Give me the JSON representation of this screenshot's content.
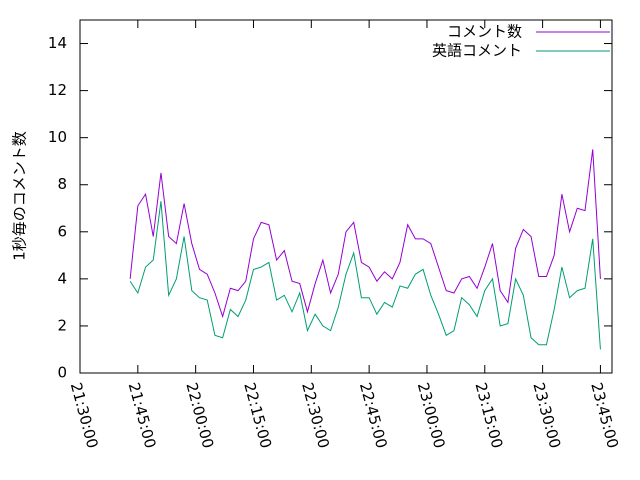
{
  "chart_data": {
    "type": "line",
    "y_label": "1秒毎のコメント数",
    "x": [
      "21:43:00",
      "21:45:00",
      "21:47:00",
      "21:49:00",
      "21:51:00",
      "21:53:00",
      "21:55:00",
      "21:57:00",
      "21:59:00",
      "22:01:00",
      "22:03:00",
      "22:05:00",
      "22:07:00",
      "22:09:00",
      "22:11:00",
      "22:13:00",
      "22:15:00",
      "22:17:00",
      "22:19:00",
      "22:21:00",
      "22:23:00",
      "22:25:00",
      "22:27:00",
      "22:29:00",
      "22:31:00",
      "22:33:00",
      "22:35:00",
      "22:37:00",
      "22:39:00",
      "22:41:00",
      "22:43:00",
      "22:45:00",
      "22:47:00",
      "22:49:00",
      "22:51:00",
      "22:53:00",
      "22:55:00",
      "22:57:00",
      "22:59:00",
      "23:01:00",
      "23:03:00",
      "23:05:00",
      "23:07:00",
      "23:09:00",
      "23:11:00",
      "23:13:00",
      "23:15:00",
      "23:17:00",
      "23:19:00",
      "23:21:00",
      "23:23:00",
      "23:25:00",
      "23:27:00",
      "23:29:00",
      "23:31:00",
      "23:33:00",
      "23:35:00",
      "23:37:00",
      "23:39:00",
      "23:41:00",
      "23:43:00",
      "23:45:00"
    ],
    "series": [
      {
        "name": "コメント数",
        "color": "#9400d3",
        "values": [
          4.0,
          7.1,
          7.6,
          5.8,
          8.5,
          5.8,
          5.5,
          7.2,
          5.5,
          4.4,
          4.2,
          3.4,
          2.4,
          3.6,
          3.5,
          3.9,
          5.7,
          6.4,
          6.3,
          4.8,
          5.2,
          3.9,
          3.8,
          2.6,
          3.8,
          4.8,
          3.4,
          4.2,
          6.0,
          6.4,
          4.7,
          4.5,
          3.9,
          4.3,
          4.0,
          4.7,
          6.3,
          5.7,
          5.7,
          5.5,
          4.5,
          3.5,
          3.4,
          4.0,
          4.1,
          3.6,
          4.5,
          5.5,
          3.5,
          3.0,
          5.3,
          6.1,
          5.8,
          4.1,
          4.1,
          5.0,
          7.6,
          6.0,
          7.0,
          6.9,
          9.5,
          4.0
        ]
      },
      {
        "name": "英語コメント",
        "color": "#009e73",
        "values": [
          3.9,
          3.4,
          4.5,
          4.8,
          7.3,
          3.3,
          4.0,
          5.8,
          3.5,
          3.2,
          3.1,
          1.6,
          1.5,
          2.7,
          2.4,
          3.1,
          4.4,
          4.5,
          4.7,
          3.1,
          3.3,
          2.6,
          3.4,
          1.8,
          2.5,
          2.0,
          1.8,
          2.8,
          4.2,
          5.1,
          3.2,
          3.2,
          2.5,
          3.0,
          2.8,
          3.7,
          3.6,
          4.2,
          4.4,
          3.3,
          2.5,
          1.6,
          1.8,
          3.2,
          2.9,
          2.4,
          3.5,
          4.0,
          2.0,
          2.1,
          4.0,
          3.3,
          1.5,
          1.2,
          1.2,
          2.7,
          4.5,
          3.2,
          3.5,
          3.6,
          5.7,
          1.0
        ]
      }
    ],
    "xlim": [
      "21:30:00",
      "23:48:00"
    ],
    "xticks": [
      "21:30:00",
      "21:45:00",
      "22:00:00",
      "22:15:00",
      "22:30:00",
      "22:45:00",
      "23:00:00",
      "23:15:00",
      "23:30:00",
      "23:45:00"
    ],
    "ylim": [
      0,
      15
    ],
    "yticks": [
      0,
      2,
      4,
      6,
      8,
      10,
      12,
      14
    ],
    "legend": "top-right"
  }
}
